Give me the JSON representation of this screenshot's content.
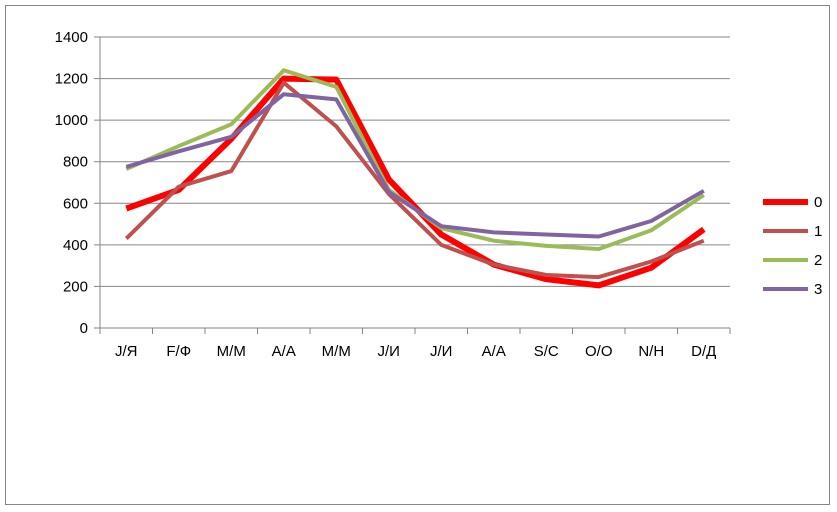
{
  "chart_data": {
    "type": "line",
    "title": "",
    "xlabel": "",
    "ylabel": "",
    "categories": [
      "J/Я",
      "F/Ф",
      "M/М",
      "A/А",
      "M/М",
      "J/И",
      "J/И",
      "A/А",
      "S/С",
      "O/О",
      "N/Н",
      "D/Д"
    ],
    "ylim": [
      0,
      1400
    ],
    "yticks": [
      0,
      200,
      400,
      600,
      800,
      1000,
      1200,
      1400
    ],
    "grid": true,
    "legend_position": "right",
    "series": [
      {
        "name": "0",
        "color": "#ff0000",
        "values": [
          575,
          665,
          910,
          1200,
          1195,
          715,
          450,
          305,
          235,
          205,
          290,
          475
        ]
      },
      {
        "name": "1",
        "color": "#c0504d",
        "values": [
          430,
          680,
          755,
          1180,
          970,
          645,
          400,
          305,
          255,
          245,
          320,
          420
        ]
      },
      {
        "name": "2",
        "color": "#9bbb59",
        "values": [
          765,
          875,
          980,
          1240,
          1160,
          665,
          480,
          420,
          395,
          380,
          470,
          640
        ]
      },
      {
        "name": "3",
        "color": "#8064a2",
        "values": [
          775,
          850,
          920,
          1125,
          1100,
          655,
          490,
          460,
          450,
          440,
          515,
          660
        ]
      }
    ]
  }
}
